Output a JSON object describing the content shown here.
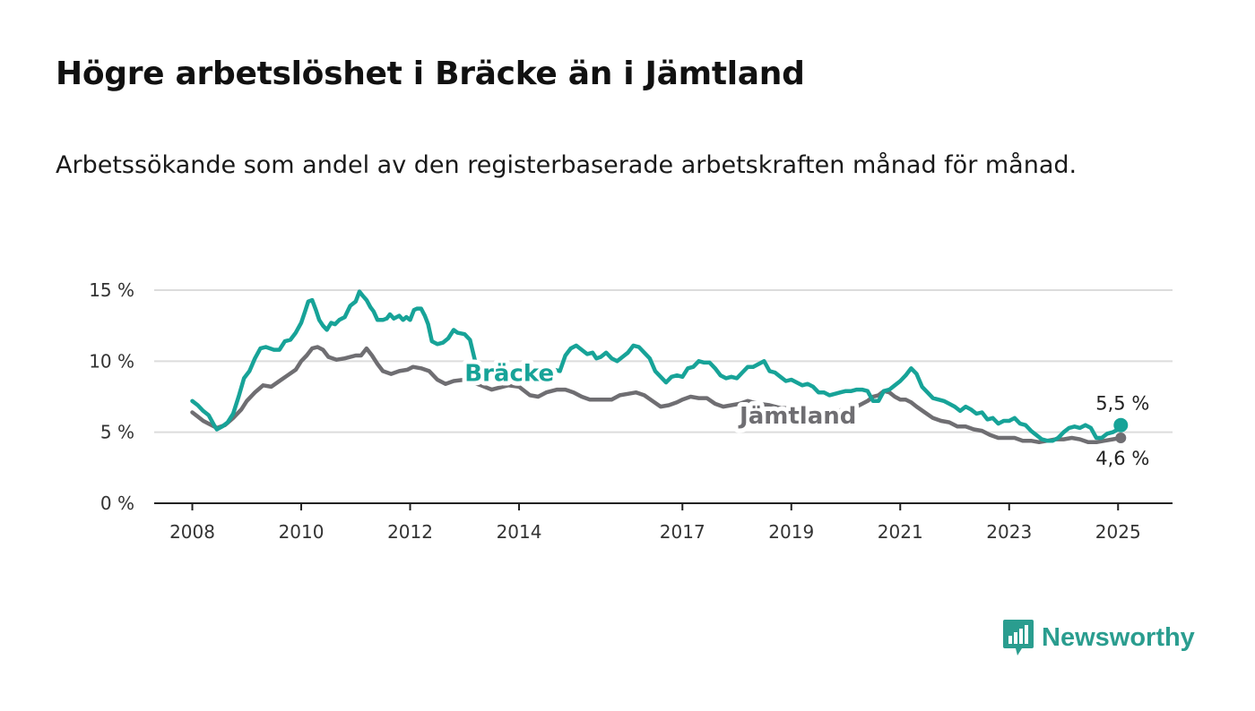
{
  "title": "Högre arbetslöshet i Bräcke än i Jämtland",
  "subtitle": "Arbetssökande som andel av den registerbaserade arbetskraften månad för månad.",
  "brand": {
    "name": "Newsworthy",
    "icon": "newsworthy-chart-bubble-icon",
    "color": "#2a9d8f"
  },
  "colors": {
    "bracke": "#17a398",
    "jamtland": "#6f6e72",
    "grid": "#dcdcdc",
    "axis": "#222222"
  },
  "chart_data": {
    "type": "line",
    "title": "Högre arbetslöshet i Bräcke än i Jämtland",
    "subtitle": "Arbetssökande som andel av den registerbaserade arbetskraften månad för månad.",
    "xlabel": "",
    "ylabel": "",
    "ylim": [
      0,
      15
    ],
    "xlim": [
      2007.3,
      2026.0
    ],
    "y_ticks": [
      "0 %",
      "5 %",
      "10 %",
      "15 %"
    ],
    "y_tick_values": [
      0,
      5,
      10,
      15
    ],
    "x_ticks": [
      "2008",
      "2010",
      "2012",
      "2014",
      "2017",
      "2019",
      "2021",
      "2023",
      "2025"
    ],
    "x_tick_values": [
      2008,
      2010,
      2012,
      2014,
      2017,
      2019,
      2021,
      2023,
      2025
    ],
    "grid": true,
    "legend": "inline labels",
    "series": [
      {
        "name": "Bräcke",
        "end_label": "5,5 %",
        "points": [
          [
            2008.0,
            7.2
          ],
          [
            2008.1,
            6.9
          ],
          [
            2008.2,
            6.5
          ],
          [
            2008.3,
            6.2
          ],
          [
            2008.4,
            5.5
          ],
          [
            2008.45,
            5.2
          ],
          [
            2008.55,
            5.4
          ],
          [
            2008.65,
            5.7
          ],
          [
            2008.75,
            6.3
          ],
          [
            2008.85,
            7.5
          ],
          [
            2008.95,
            8.8
          ],
          [
            2009.05,
            9.3
          ],
          [
            2009.15,
            10.2
          ],
          [
            2009.25,
            10.9
          ],
          [
            2009.35,
            11.0
          ],
          [
            2009.5,
            10.8
          ],
          [
            2009.6,
            10.8
          ],
          [
            2009.7,
            11.4
          ],
          [
            2009.8,
            11.5
          ],
          [
            2009.9,
            12.0
          ],
          [
            2010.0,
            12.7
          ],
          [
            2010.07,
            13.5
          ],
          [
            2010.13,
            14.2
          ],
          [
            2010.2,
            14.3
          ],
          [
            2010.27,
            13.6
          ],
          [
            2010.33,
            12.9
          ],
          [
            2010.4,
            12.5
          ],
          [
            2010.47,
            12.2
          ],
          [
            2010.55,
            12.7
          ],
          [
            2010.62,
            12.6
          ],
          [
            2010.7,
            12.9
          ],
          [
            2010.8,
            13.1
          ],
          [
            2010.9,
            13.9
          ],
          [
            2011.0,
            14.2
          ],
          [
            2011.07,
            14.9
          ],
          [
            2011.13,
            14.6
          ],
          [
            2011.2,
            14.3
          ],
          [
            2011.27,
            13.8
          ],
          [
            2011.33,
            13.5
          ],
          [
            2011.4,
            12.9
          ],
          [
            2011.5,
            12.9
          ],
          [
            2011.57,
            13.0
          ],
          [
            2011.63,
            13.3
          ],
          [
            2011.7,
            13.0
          ],
          [
            2011.8,
            13.2
          ],
          [
            2011.87,
            12.9
          ],
          [
            2011.93,
            13.1
          ],
          [
            2012.0,
            12.9
          ],
          [
            2012.07,
            13.6
          ],
          [
            2012.13,
            13.7
          ],
          [
            2012.2,
            13.7
          ],
          [
            2012.27,
            13.2
          ],
          [
            2012.33,
            12.6
          ],
          [
            2012.4,
            11.4
          ],
          [
            2012.5,
            11.2
          ],
          [
            2012.6,
            11.3
          ],
          [
            2012.7,
            11.6
          ],
          [
            2012.8,
            12.2
          ],
          [
            2012.87,
            12.0
          ],
          [
            2013.0,
            11.9
          ],
          [
            2013.1,
            11.5
          ],
          [
            2013.2,
            9.9
          ],
          [
            2013.4,
            8.8
          ],
          [
            2013.6,
            8.9
          ],
          [
            2014.0,
            8.6
          ],
          [
            2014.3,
            8.8
          ],
          [
            2014.5,
            9.2
          ],
          [
            2014.65,
            9.4
          ],
          [
            2014.75,
            9.3
          ],
          [
            2014.85,
            10.4
          ],
          [
            2014.95,
            10.9
          ],
          [
            2015.05,
            11.1
          ],
          [
            2015.15,
            10.8
          ],
          [
            2015.25,
            10.5
          ],
          [
            2015.35,
            10.6
          ],
          [
            2015.42,
            10.2
          ],
          [
            2015.5,
            10.3
          ],
          [
            2015.6,
            10.6
          ],
          [
            2015.7,
            10.2
          ],
          [
            2015.8,
            10.0
          ],
          [
            2015.9,
            10.3
          ],
          [
            2016.0,
            10.6
          ],
          [
            2016.1,
            11.1
          ],
          [
            2016.2,
            11.0
          ],
          [
            2016.3,
            10.6
          ],
          [
            2016.4,
            10.2
          ],
          [
            2016.5,
            9.3
          ],
          [
            2016.6,
            8.9
          ],
          [
            2016.7,
            8.5
          ],
          [
            2016.8,
            8.9
          ],
          [
            2016.9,
            9.0
          ],
          [
            2017.0,
            8.9
          ],
          [
            2017.1,
            9.5
          ],
          [
            2017.2,
            9.6
          ],
          [
            2017.3,
            10.0
          ],
          [
            2017.4,
            9.9
          ],
          [
            2017.5,
            9.9
          ],
          [
            2017.6,
            9.5
          ],
          [
            2017.7,
            9.0
          ],
          [
            2017.8,
            8.8
          ],
          [
            2017.9,
            8.9
          ],
          [
            2018.0,
            8.8
          ],
          [
            2018.1,
            9.2
          ],
          [
            2018.2,
            9.6
          ],
          [
            2018.3,
            9.6
          ],
          [
            2018.4,
            9.8
          ],
          [
            2018.5,
            10.0
          ],
          [
            2018.6,
            9.3
          ],
          [
            2018.7,
            9.2
          ],
          [
            2018.8,
            8.9
          ],
          [
            2018.9,
            8.6
          ],
          [
            2019.0,
            8.7
          ],
          [
            2019.1,
            8.5
          ],
          [
            2019.2,
            8.3
          ],
          [
            2019.3,
            8.4
          ],
          [
            2019.4,
            8.2
          ],
          [
            2019.5,
            7.8
          ],
          [
            2019.6,
            7.8
          ],
          [
            2019.7,
            7.6
          ],
          [
            2019.8,
            7.7
          ],
          [
            2019.9,
            7.8
          ],
          [
            2020.0,
            7.9
          ],
          [
            2020.1,
            7.9
          ],
          [
            2020.2,
            8.0
          ],
          [
            2020.3,
            8.0
          ],
          [
            2020.4,
            7.9
          ],
          [
            2020.5,
            7.2
          ],
          [
            2020.6,
            7.2
          ],
          [
            2020.7,
            7.9
          ],
          [
            2020.8,
            8.0
          ],
          [
            2020.9,
            8.3
          ],
          [
            2021.0,
            8.6
          ],
          [
            2021.1,
            9.0
          ],
          [
            2021.2,
            9.5
          ],
          [
            2021.3,
            9.1
          ],
          [
            2021.4,
            8.2
          ],
          [
            2021.5,
            7.8
          ],
          [
            2021.6,
            7.4
          ],
          [
            2021.7,
            7.3
          ],
          [
            2021.8,
            7.2
          ],
          [
            2021.9,
            7.0
          ],
          [
            2022.0,
            6.8
          ],
          [
            2022.1,
            6.5
          ],
          [
            2022.2,
            6.8
          ],
          [
            2022.3,
            6.6
          ],
          [
            2022.4,
            6.3
          ],
          [
            2022.5,
            6.4
          ],
          [
            2022.6,
            5.9
          ],
          [
            2022.7,
            6.0
          ],
          [
            2022.8,
            5.6
          ],
          [
            2022.9,
            5.8
          ],
          [
            2023.0,
            5.8
          ],
          [
            2023.1,
            6.0
          ],
          [
            2023.2,
            5.6
          ],
          [
            2023.3,
            5.5
          ],
          [
            2023.4,
            5.1
          ],
          [
            2023.5,
            4.8
          ],
          [
            2023.6,
            4.5
          ],
          [
            2023.7,
            4.4
          ],
          [
            2023.8,
            4.4
          ],
          [
            2023.9,
            4.6
          ],
          [
            2024.0,
            5.0
          ],
          [
            2024.1,
            5.3
          ],
          [
            2024.2,
            5.4
          ],
          [
            2024.3,
            5.3
          ],
          [
            2024.4,
            5.5
          ],
          [
            2024.5,
            5.3
          ],
          [
            2024.6,
            4.6
          ],
          [
            2024.7,
            4.6
          ],
          [
            2024.8,
            4.9
          ],
          [
            2024.9,
            5.0
          ],
          [
            2025.0,
            5.2
          ],
          [
            2025.05,
            5.5
          ]
        ]
      },
      {
        "name": "Jämtland",
        "end_label": "4,6 %",
        "points": [
          [
            2008.0,
            6.4
          ],
          [
            2008.1,
            6.1
          ],
          [
            2008.2,
            5.8
          ],
          [
            2008.3,
            5.6
          ],
          [
            2008.45,
            5.3
          ],
          [
            2008.6,
            5.5
          ],
          [
            2008.75,
            6.0
          ],
          [
            2008.9,
            6.6
          ],
          [
            2009.0,
            7.2
          ],
          [
            2009.15,
            7.8
          ],
          [
            2009.3,
            8.3
          ],
          [
            2009.45,
            8.2
          ],
          [
            2009.6,
            8.6
          ],
          [
            2009.75,
            9.0
          ],
          [
            2009.9,
            9.4
          ],
          [
            2010.0,
            10.0
          ],
          [
            2010.1,
            10.4
          ],
          [
            2010.2,
            10.9
          ],
          [
            2010.3,
            11.0
          ],
          [
            2010.4,
            10.8
          ],
          [
            2010.5,
            10.3
          ],
          [
            2010.65,
            10.1
          ],
          [
            2010.8,
            10.2
          ],
          [
            2011.0,
            10.4
          ],
          [
            2011.1,
            10.4
          ],
          [
            2011.2,
            10.9
          ],
          [
            2011.3,
            10.4
          ],
          [
            2011.4,
            9.8
          ],
          [
            2011.5,
            9.3
          ],
          [
            2011.65,
            9.1
          ],
          [
            2011.8,
            9.3
          ],
          [
            2011.95,
            9.4
          ],
          [
            2012.05,
            9.6
          ],
          [
            2012.2,
            9.5
          ],
          [
            2012.35,
            9.3
          ],
          [
            2012.5,
            8.7
          ],
          [
            2012.65,
            8.4
          ],
          [
            2012.8,
            8.6
          ],
          [
            2013.0,
            8.7
          ],
          [
            2013.3,
            8.3
          ],
          [
            2013.5,
            8.0
          ],
          [
            2013.8,
            8.3
          ],
          [
            2014.0,
            8.2
          ],
          [
            2014.2,
            7.6
          ],
          [
            2014.35,
            7.5
          ],
          [
            2014.5,
            7.8
          ],
          [
            2014.7,
            8.0
          ],
          [
            2014.85,
            8.0
          ],
          [
            2015.0,
            7.8
          ],
          [
            2015.15,
            7.5
          ],
          [
            2015.3,
            7.3
          ],
          [
            2015.5,
            7.3
          ],
          [
            2015.7,
            7.3
          ],
          [
            2015.85,
            7.6
          ],
          [
            2016.0,
            7.7
          ],
          [
            2016.15,
            7.8
          ],
          [
            2016.3,
            7.6
          ],
          [
            2016.45,
            7.2
          ],
          [
            2016.6,
            6.8
          ],
          [
            2016.75,
            6.9
          ],
          [
            2016.9,
            7.1
          ],
          [
            2017.0,
            7.3
          ],
          [
            2017.15,
            7.5
          ],
          [
            2017.3,
            7.4
          ],
          [
            2017.45,
            7.4
          ],
          [
            2017.6,
            7.0
          ],
          [
            2017.75,
            6.8
          ],
          [
            2017.9,
            6.9
          ],
          [
            2018.05,
            7.0
          ],
          [
            2018.2,
            7.2
          ],
          [
            2018.4,
            7.0
          ],
          [
            2018.6,
            6.9
          ],
          [
            2018.8,
            6.7
          ],
          [
            2019.0,
            6.7
          ],
          [
            2019.2,
            6.6
          ],
          [
            2019.4,
            6.5
          ],
          [
            2019.6,
            6.5
          ],
          [
            2019.8,
            6.5
          ],
          [
            2020.0,
            6.6
          ],
          [
            2020.2,
            6.8
          ],
          [
            2020.4,
            7.2
          ],
          [
            2020.5,
            7.5
          ],
          [
            2020.6,
            7.6
          ],
          [
            2020.7,
            7.9
          ],
          [
            2020.8,
            7.8
          ],
          [
            2020.9,
            7.5
          ],
          [
            2021.0,
            7.3
          ],
          [
            2021.1,
            7.3
          ],
          [
            2021.2,
            7.1
          ],
          [
            2021.3,
            6.8
          ],
          [
            2021.45,
            6.4
          ],
          [
            2021.6,
            6.0
          ],
          [
            2021.75,
            5.8
          ],
          [
            2021.9,
            5.7
          ],
          [
            2022.05,
            5.4
          ],
          [
            2022.2,
            5.4
          ],
          [
            2022.35,
            5.2
          ],
          [
            2022.5,
            5.1
          ],
          [
            2022.65,
            4.8
          ],
          [
            2022.8,
            4.6
          ],
          [
            2022.95,
            4.6
          ],
          [
            2023.1,
            4.6
          ],
          [
            2023.25,
            4.4
          ],
          [
            2023.4,
            4.4
          ],
          [
            2023.55,
            4.3
          ],
          [
            2023.7,
            4.4
          ],
          [
            2023.85,
            4.5
          ],
          [
            2024.0,
            4.5
          ],
          [
            2024.15,
            4.6
          ],
          [
            2024.3,
            4.5
          ],
          [
            2024.45,
            4.3
          ],
          [
            2024.6,
            4.3
          ],
          [
            2024.75,
            4.4
          ],
          [
            2024.9,
            4.5
          ],
          [
            2025.05,
            4.6
          ]
        ]
      }
    ]
  }
}
